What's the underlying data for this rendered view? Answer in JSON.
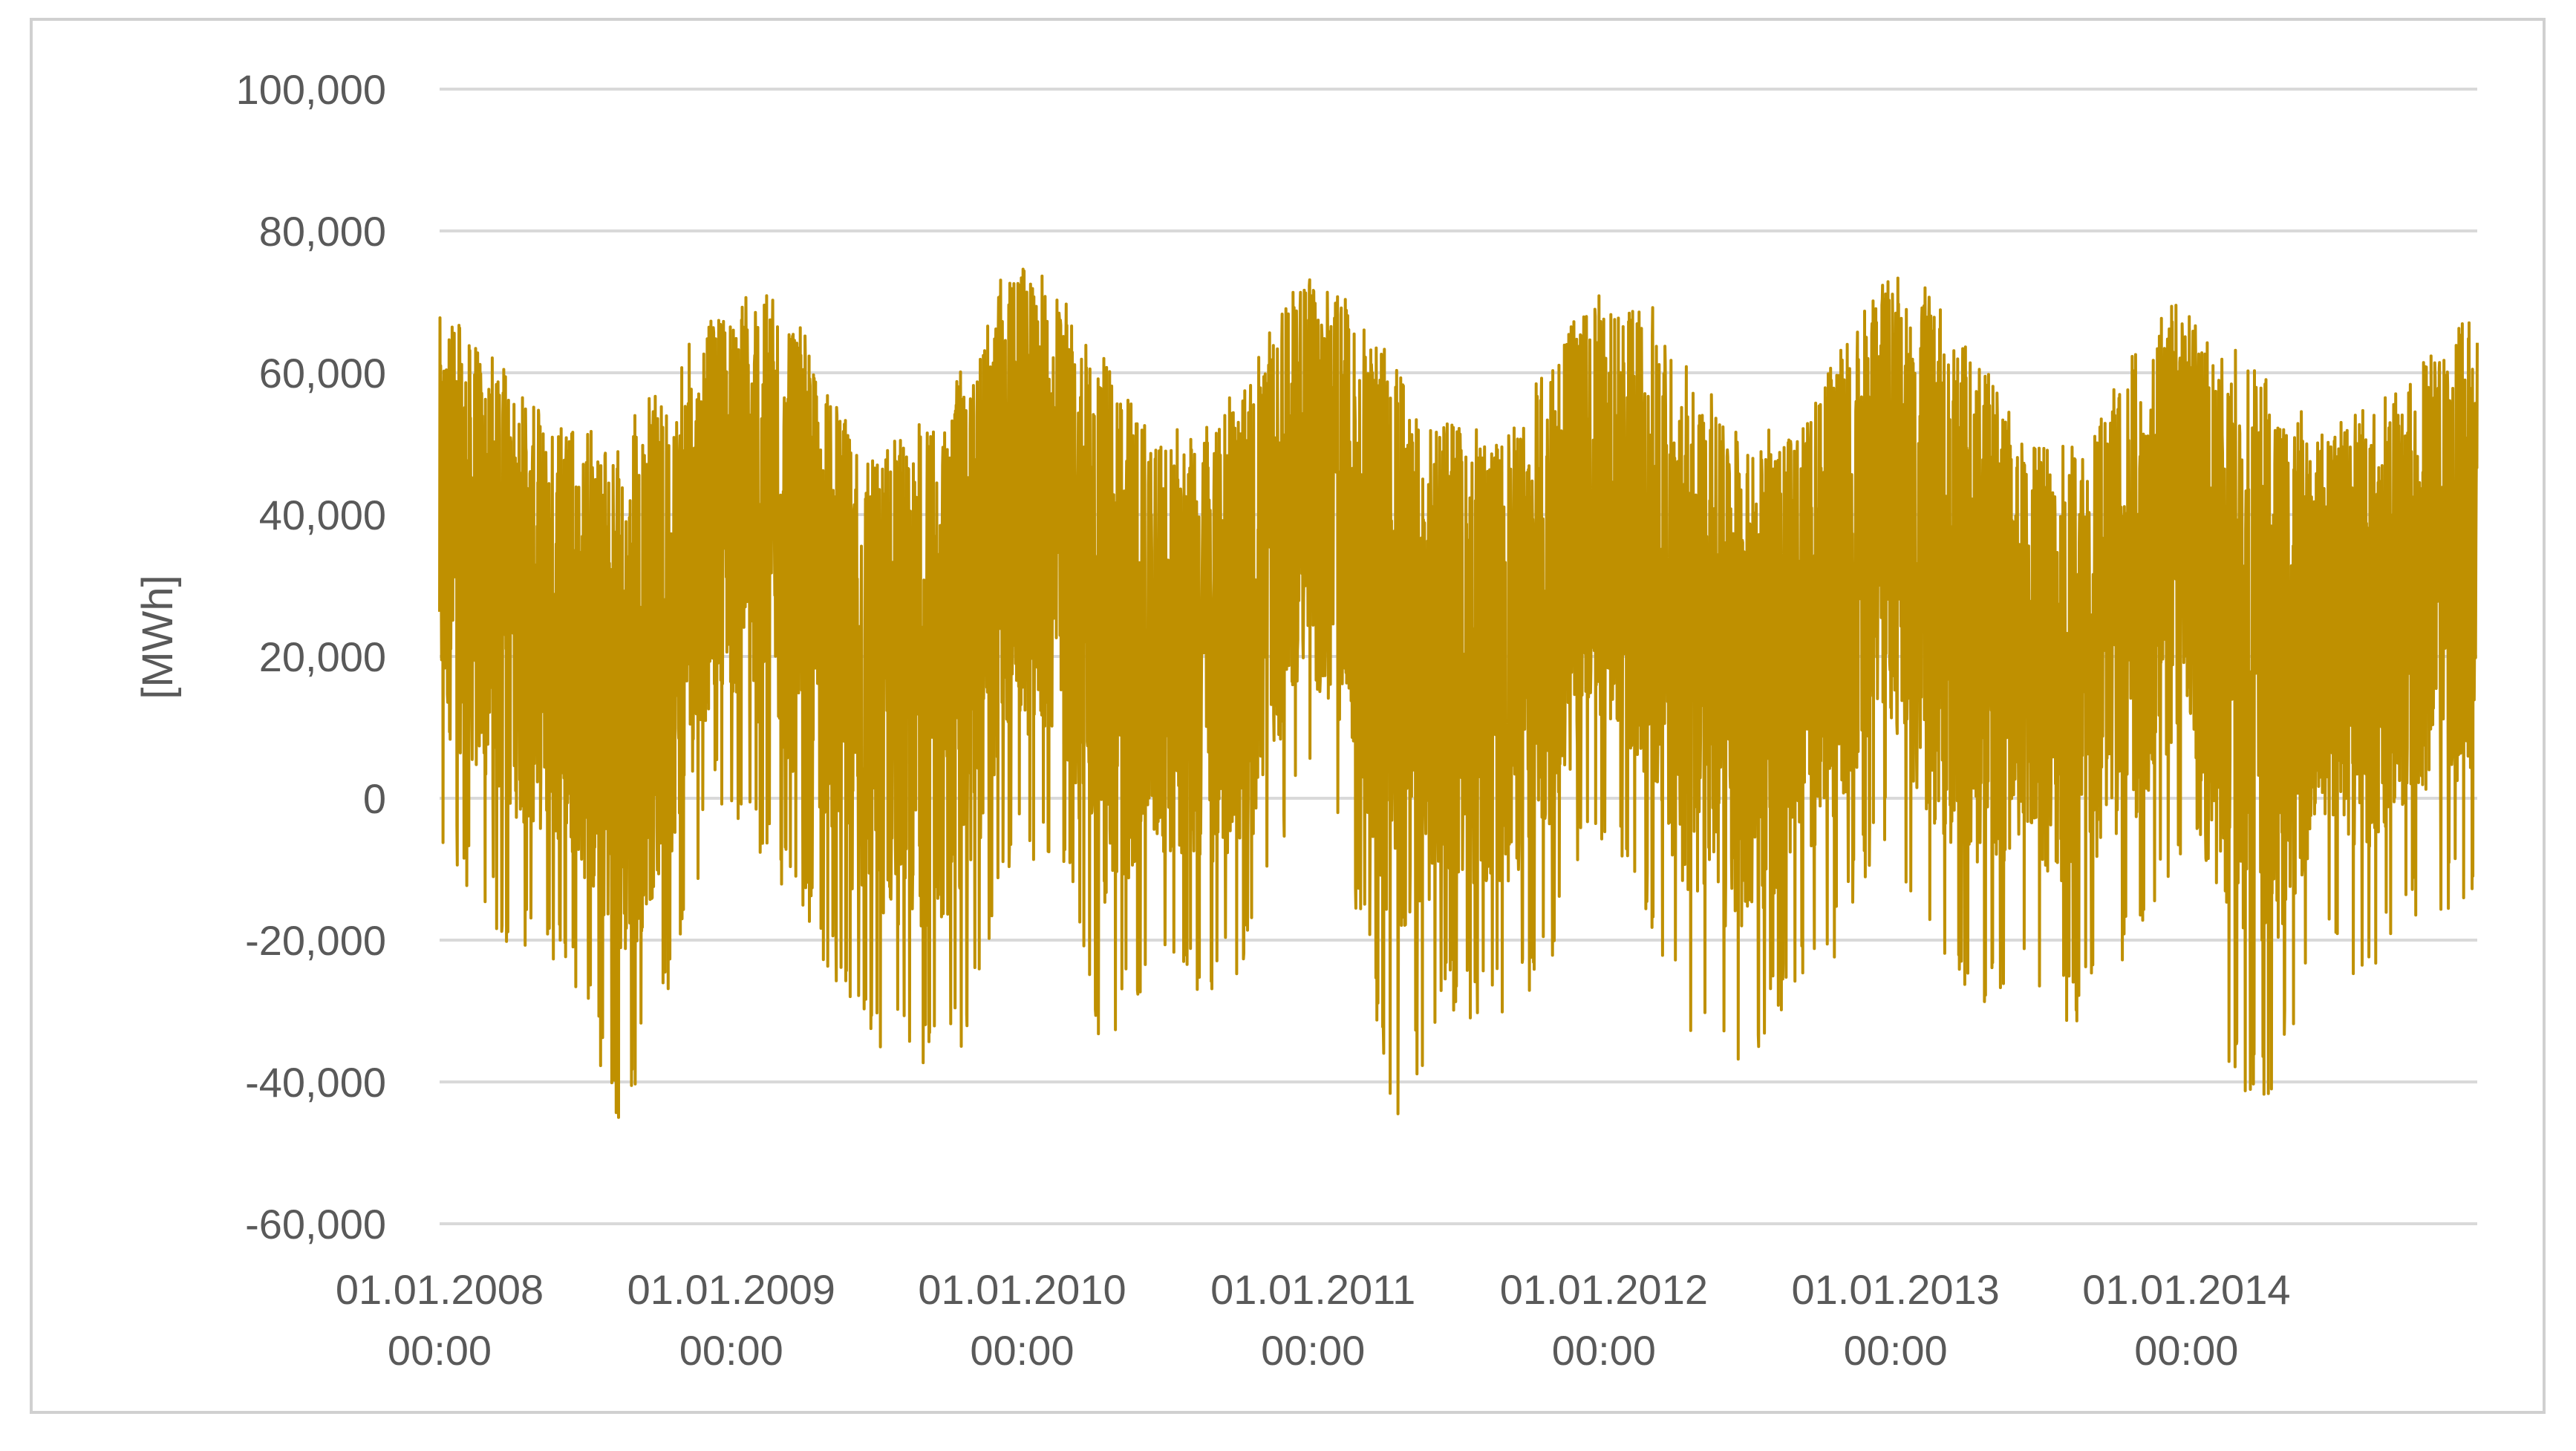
{
  "chart_data": {
    "type": "line",
    "title": "",
    "xlabel": "",
    "ylabel": "[MWh]",
    "ylim": [
      -60000,
      100000
    ],
    "y_ticks": [
      -60000,
      -40000,
      -20000,
      0,
      20000,
      40000,
      60000,
      80000,
      100000
    ],
    "y_tick_labels": [
      "-60,000",
      "-40,000",
      "-20,000",
      "0",
      "20,000",
      "40,000",
      "60,000",
      "80,000",
      "100,000"
    ],
    "x_tick_labels": [
      {
        "date": "01.01.2008",
        "time": "00:00"
      },
      {
        "date": "01.01.2009",
        "time": "00:00"
      },
      {
        "date": "01.01.2010",
        "time": "00:00"
      },
      {
        "date": "01.01.2011",
        "time": "00:00"
      },
      {
        "date": "01.01.2012",
        "time": "00:00"
      },
      {
        "date": "01.01.2013",
        "time": "00:00"
      },
      {
        "date": "01.01.2014",
        "time": "00:00"
      }
    ],
    "x_range": [
      "01.01.2008 00:00",
      "31.12.2014 23:00"
    ],
    "grid": "horizontal",
    "legend": "none",
    "series": [
      {
        "color": "#BF9000",
        "envelope": [
          {
            "x": "2008-01",
            "max": 70000,
            "min": -10000
          },
          {
            "x": "2008-03",
            "max": 62000,
            "min": -20000
          },
          {
            "x": "2008-06",
            "max": 52000,
            "min": -25000
          },
          {
            "x": "2008-08",
            "max": 52000,
            "min": -47000
          },
          {
            "x": "2008-10",
            "max": 60000,
            "min": -28000
          },
          {
            "x": "2008-12",
            "max": 70000,
            "min": 0
          },
          {
            "x": "2009-02",
            "max": 72000,
            "min": -10000
          },
          {
            "x": "2009-04",
            "max": 64000,
            "min": -20000
          },
          {
            "x": "2009-06",
            "max": 52000,
            "min": -35000
          },
          {
            "x": "2009-08",
            "max": 52000,
            "min": -38000
          },
          {
            "x": "2009-10",
            "max": 60000,
            "min": -37000
          },
          {
            "x": "2009-12",
            "max": 78000,
            "min": -10000
          },
          {
            "x": "2010-02",
            "max": 72000,
            "min": -10000
          },
          {
            "x": "2010-04",
            "max": 62000,
            "min": -37000
          },
          {
            "x": "2010-06",
            "max": 52000,
            "min": -25000
          },
          {
            "x": "2010-08",
            "max": 52000,
            "min": -28000
          },
          {
            "x": "2010-10",
            "max": 60000,
            "min": -25000
          },
          {
            "x": "2010-12",
            "max": 75000,
            "min": 0
          },
          {
            "x": "2011-02",
            "max": 70000,
            "min": -10000
          },
          {
            "x": "2011-04",
            "max": 62000,
            "min": -47000
          },
          {
            "x": "2011-06",
            "max": 54000,
            "min": -30000
          },
          {
            "x": "2011-08",
            "max": 52000,
            "min": -32000
          },
          {
            "x": "2011-10",
            "max": 60000,
            "min": -28000
          },
          {
            "x": "2011-12",
            "max": 72000,
            "min": -5000
          },
          {
            "x": "2012-02",
            "max": 72000,
            "min": -15000
          },
          {
            "x": "2012-04",
            "max": 62000,
            "min": -35000
          },
          {
            "x": "2012-06",
            "max": 52000,
            "min": -40000
          },
          {
            "x": "2012-08",
            "max": 52000,
            "min": -30000
          },
          {
            "x": "2012-10",
            "max": 62000,
            "min": -23000
          },
          {
            "x": "2012-12",
            "max": 75000,
            "min": -5000
          },
          {
            "x": "2013-02",
            "max": 72000,
            "min": -25000
          },
          {
            "x": "2013-04",
            "max": 62000,
            "min": -30000
          },
          {
            "x": "2013-06",
            "max": 52000,
            "min": -25000
          },
          {
            "x": "2013-08",
            "max": 50000,
            "min": -33000
          },
          {
            "x": "2013-10",
            "max": 62000,
            "min": -25000
          },
          {
            "x": "2013-12",
            "max": 70000,
            "min": -10000
          },
          {
            "x": "2014-02",
            "max": 65000,
            "min": -38000
          },
          {
            "x": "2014-04",
            "max": 60000,
            "min": -45000
          },
          {
            "x": "2014-06",
            "max": 52000,
            "min": -22000
          },
          {
            "x": "2014-08",
            "max": 55000,
            "min": -26000
          },
          {
            "x": "2014-10",
            "max": 60000,
            "min": -18000
          },
          {
            "x": "2014-12",
            "max": 70000,
            "min": -16000
          }
        ]
      }
    ]
  }
}
